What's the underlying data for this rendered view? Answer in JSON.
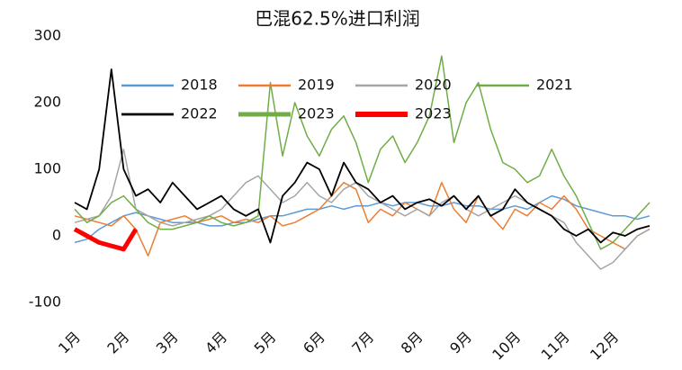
{
  "chart_data": {
    "type": "line",
    "title": "巴混62.5%进口利润",
    "categories": [
      "1月",
      null,
      null,
      null,
      "2月",
      null,
      null,
      null,
      "3月",
      null,
      null,
      null,
      "4月",
      null,
      null,
      null,
      "5月",
      null,
      null,
      null,
      "6月",
      null,
      null,
      null,
      "7月",
      null,
      null,
      null,
      "8月",
      null,
      null,
      null,
      "9月",
      null,
      null,
      null,
      "10月",
      null,
      null,
      null,
      "11月",
      null,
      null,
      null,
      "12月",
      null,
      null,
      null
    ],
    "ylim": [
      -100,
      300
    ],
    "yticks": [
      -100,
      0,
      100,
      200,
      300
    ],
    "series": [
      {
        "name": "2018",
        "color": "#5b9bd5",
        "line_width": 1.5,
        "values": [
          -10,
          -5,
          10,
          20,
          30,
          35,
          30,
          25,
          20,
          20,
          20,
          15,
          15,
          20,
          20,
          25,
          30,
          30,
          35,
          40,
          40,
          45,
          40,
          45,
          45,
          50,
          45,
          50,
          50,
          45,
          45,
          50,
          45,
          45,
          40,
          40,
          45,
          40,
          50,
          60,
          55,
          45,
          40,
          35,
          30,
          30,
          25,
          30
        ]
      },
      {
        "name": "2019",
        "color": "#ed7d31",
        "line_width": 1.5,
        "values": [
          30,
          25,
          20,
          15,
          30,
          10,
          -30,
          20,
          25,
          30,
          20,
          25,
          30,
          20,
          25,
          20,
          30,
          15,
          20,
          30,
          40,
          60,
          80,
          70,
          20,
          40,
          30,
          50,
          40,
          30,
          80,
          40,
          20,
          60,
          30,
          10,
          40,
          30,
          50,
          40,
          60,
          40,
          10,
          0,
          -10,
          -20,
          0,
          10
        ]
      },
      {
        "name": "2020",
        "color": "#a5a5a5",
        "line_width": 1.5,
        "values": [
          20,
          25,
          30,
          60,
          130,
          40,
          30,
          20,
          15,
          20,
          25,
          30,
          40,
          60,
          80,
          90,
          70,
          50,
          60,
          80,
          60,
          50,
          70,
          80,
          60,
          50,
          40,
          30,
          40,
          30,
          50,
          60,
          40,
          30,
          40,
          50,
          60,
          50,
          40,
          30,
          20,
          -10,
          -30,
          -50,
          -40,
          -20,
          0,
          10
        ]
      },
      {
        "name": "2021",
        "color": "#70ad47",
        "line_width": 1.5,
        "values": [
          40,
          20,
          30,
          50,
          60,
          40,
          20,
          10,
          10,
          15,
          20,
          30,
          20,
          15,
          20,
          30,
          230,
          120,
          200,
          150,
          120,
          160,
          180,
          140,
          80,
          130,
          150,
          110,
          140,
          180,
          270,
          140,
          200,
          230,
          160,
          110,
          100,
          80,
          90,
          130,
          90,
          60,
          20,
          -20,
          -10,
          10,
          30,
          50
        ]
      },
      {
        "name": "2022",
        "color": "#000000",
        "line_width": 1.8,
        "values": [
          50,
          40,
          100,
          250,
          100,
          60,
          70,
          50,
          80,
          60,
          40,
          50,
          60,
          40,
          30,
          40,
          -10,
          60,
          80,
          110,
          100,
          60,
          110,
          80,
          70,
          50,
          60,
          40,
          50,
          55,
          45,
          60,
          40,
          60,
          30,
          40,
          70,
          50,
          40,
          30,
          10,
          0,
          10,
          -10,
          5,
          0,
          10,
          15
        ]
      },
      {
        "name": "2023",
        "color": "#70ad47",
        "line_width": 4,
        "values": [
          null,
          null,
          null,
          null,
          null,
          null,
          null,
          null,
          null,
          null,
          null,
          null,
          null,
          null,
          null,
          null,
          null,
          null,
          null,
          null,
          null,
          null,
          null,
          null,
          null,
          null,
          null,
          null,
          null,
          null,
          null,
          null,
          null,
          null,
          null,
          null,
          null,
          null,
          null,
          null,
          null,
          null,
          null,
          null,
          null,
          null,
          null,
          null
        ]
      },
      {
        "name": "2023",
        "color": "#ff0000",
        "line_width": 5,
        "values": [
          10,
          0,
          -10,
          -15,
          -20,
          10,
          null,
          null,
          null,
          null,
          null,
          null,
          null,
          null,
          null,
          null,
          null,
          null,
          null,
          null,
          null,
          null,
          null,
          null,
          null,
          null,
          null,
          null,
          null,
          null,
          null,
          null,
          null,
          null,
          null,
          null,
          null,
          null,
          null,
          null,
          null,
          null,
          null,
          null,
          null,
          null,
          null,
          null
        ]
      }
    ]
  }
}
